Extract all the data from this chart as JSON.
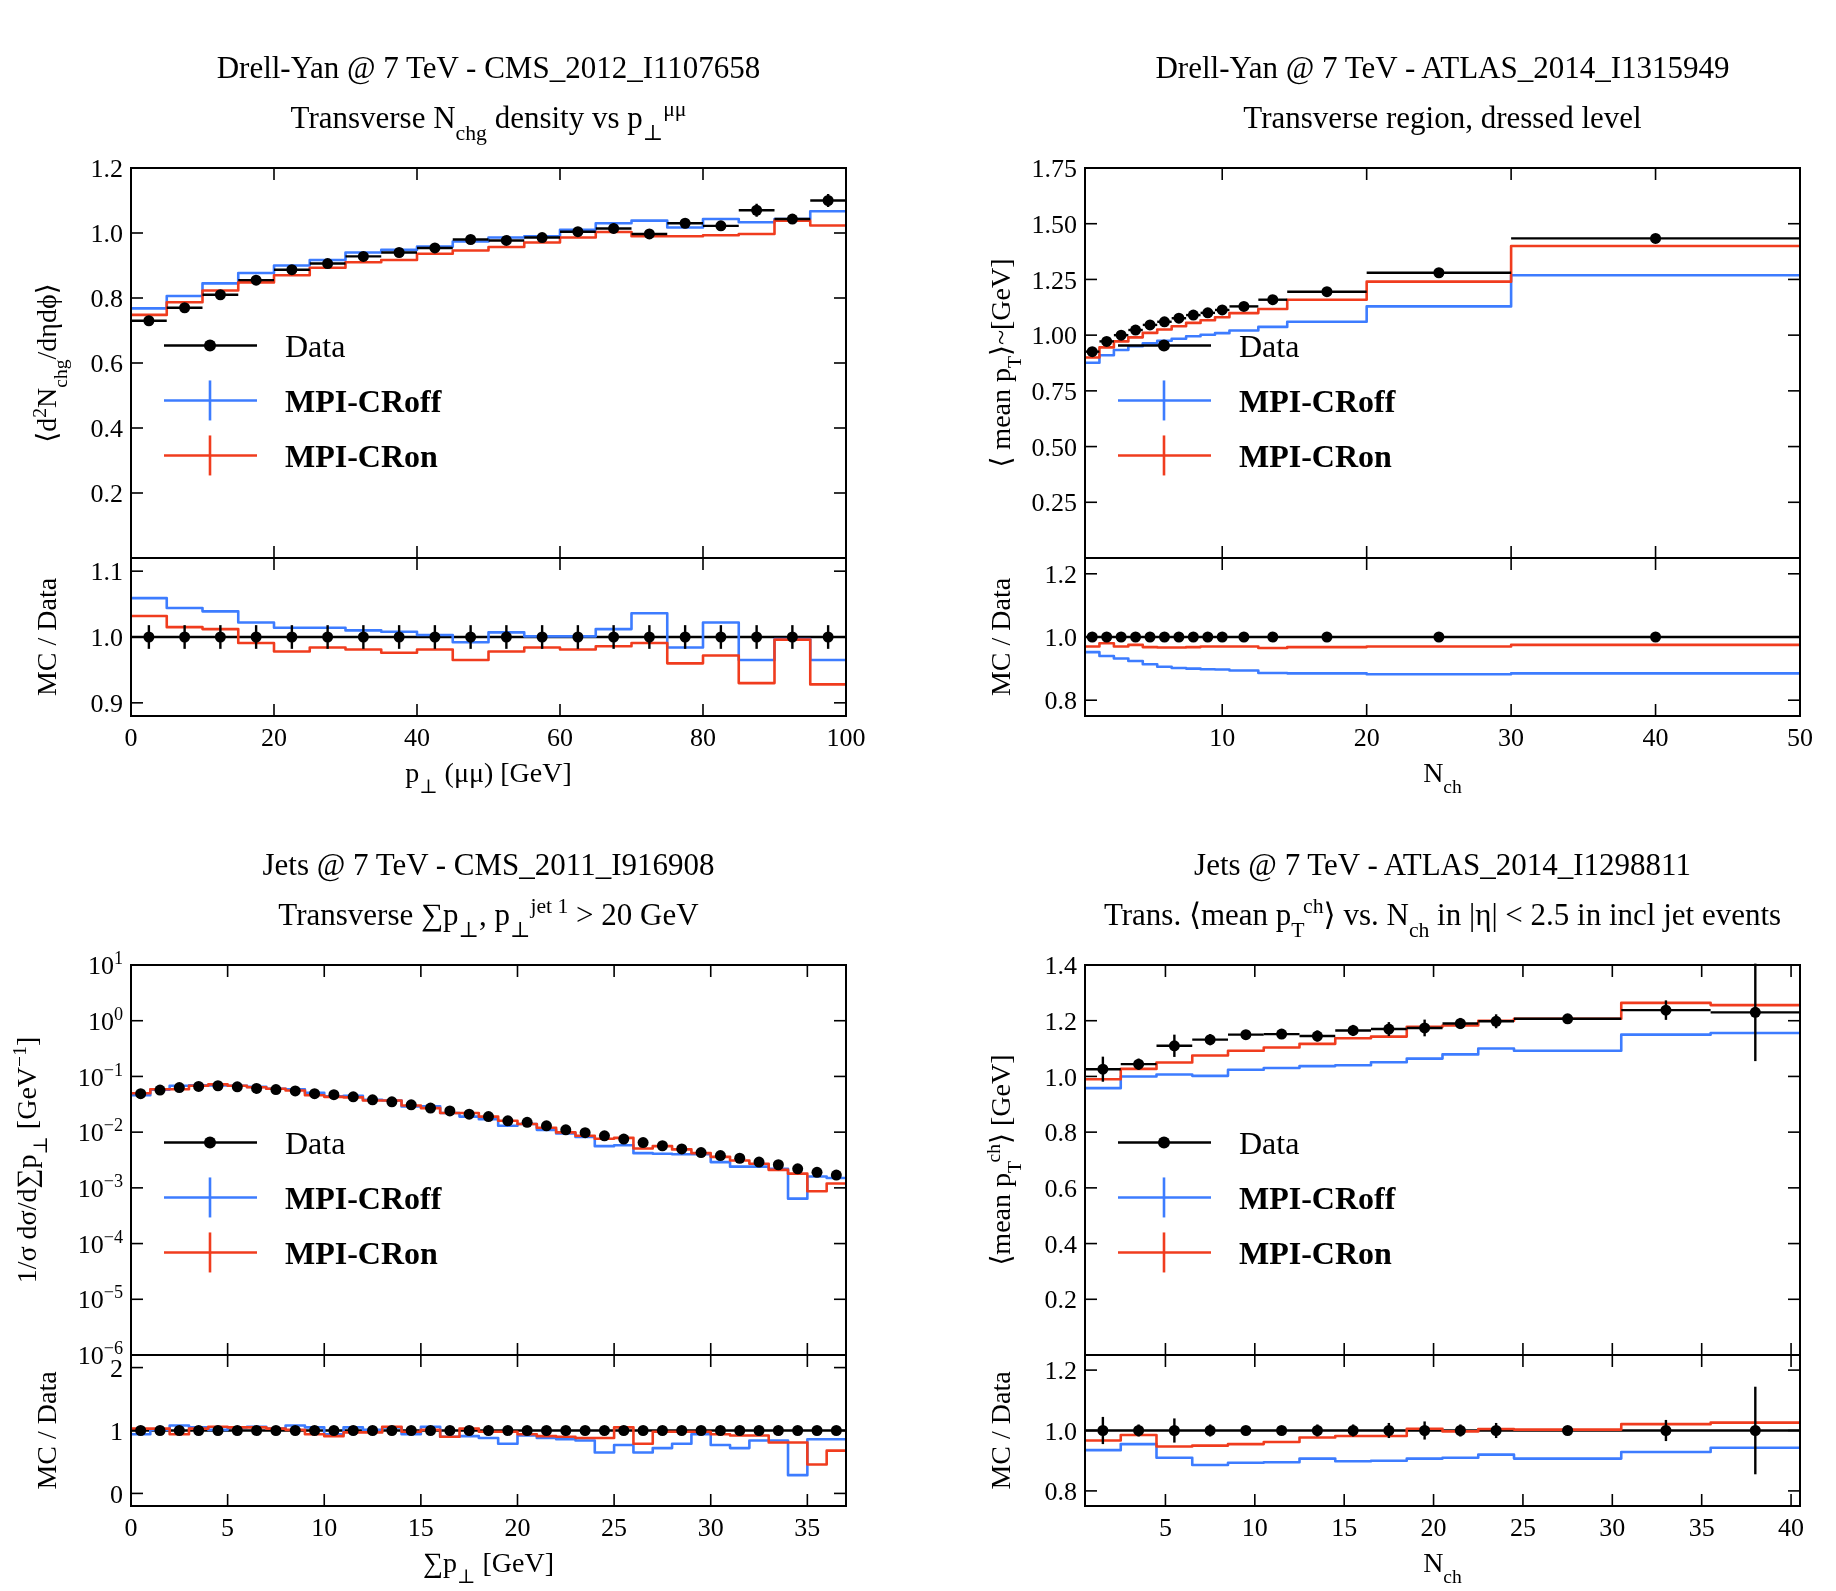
{
  "chart_data": [
    {
      "type": "histogram",
      "title": "Drell-Yan @ 7 TeV - CMS_2012_I1107658",
      "subtitle": "Transverse N$_{chg}$ density vs p$_{⊥}$$^{μμ}$",
      "ylabel": "⟨d$^{2}$N$_{chg}$/dηdϕ⟩",
      "xlim": [
        0,
        100
      ],
      "ylim": [
        0,
        1.2
      ],
      "xticks": [
        0,
        20,
        40,
        60,
        80,
        100
      ],
      "yticks": [
        0.2,
        0.4,
        0.6,
        0.8,
        {
          "value": 1,
          "label": "1.0"
        },
        1.2
      ],
      "tick_labels": "y",
      "legend": "left",
      "series": [
        {
          "name": "Data",
          "type": "scatter",
          "color": "#000000",
          "marker": "circle",
          "x": [
            2.5,
            7.5,
            12.5,
            17.5,
            22.5,
            27.5,
            32.5,
            37.5,
            42.5,
            47.5,
            52.5,
            57.5,
            62.5,
            67.5,
            72.5,
            77.5,
            82.5,
            87.5,
            92.5,
            97.5
          ],
          "values": [
            0.73,
            0.77,
            0.81,
            0.855,
            0.887,
            0.906,
            0.928,
            0.94,
            0.954,
            0.98,
            0.977,
            0.986,
            1.004,
            1.014,
            0.997,
            1.03,
            1.022,
            1.07,
            1.043,
            1.1
          ],
          "errors": [
            0.01,
            0.01,
            0.01,
            0.01,
            0.01,
            0.01,
            0.01,
            0.01,
            0.012,
            0.012,
            0.012,
            0.012,
            0.012,
            0.015,
            0.015,
            0.015,
            0.015,
            0.02,
            0.015,
            0.02
          ],
          "xerrors": [
            2.5,
            2.5,
            2.5,
            2.5,
            2.5,
            2.5,
            2.5,
            2.5,
            2.5,
            2.5,
            2.5,
            2.5,
            2.5,
            2.5,
            2.5,
            2.5,
            2.5,
            2.5,
            2.5,
            2.5
          ]
        },
        {
          "name": "MPI-CRoff",
          "type": "histogram",
          "color": "#3d7cff",
          "bins": [
            0,
            5,
            10,
            15,
            20,
            25,
            30,
            35,
            40,
            45,
            50,
            55,
            60,
            65,
            70,
            75,
            80,
            85,
            90,
            95,
            100
          ],
          "values": [
            0.768,
            0.806,
            0.845,
            0.877,
            0.9,
            0.917,
            0.94,
            0.948,
            0.958,
            0.974,
            0.986,
            0.99,
            1.01,
            1.03,
            1.038,
            1.017,
            1.043,
            1.033,
            1.043,
            1.067
          ]
        },
        {
          "name": "MPI-CRon",
          "type": "histogram",
          "color": "#f03c1e",
          "bins": [
            0,
            5,
            10,
            15,
            20,
            25,
            30,
            35,
            40,
            45,
            50,
            55,
            60,
            65,
            70,
            75,
            80,
            85,
            90,
            95,
            100
          ],
          "values": [
            0.748,
            0.787,
            0.823,
            0.848,
            0.87,
            0.893,
            0.91,
            0.917,
            0.936,
            0.946,
            0.957,
            0.971,
            0.986,
            1.003,
            0.99,
            0.99,
            0.993,
            0.997,
            1.038,
            1.023
          ]
        }
      ]
    },
    {
      "type": "histogram",
      "ylabel": "MC / Data",
      "xlabel": "p$_{⊥}$ (μμ) [GeV]",
      "xlim": [
        0,
        100
      ],
      "ylim": [
        0.88,
        1.12
      ],
      "xticks": [
        0,
        20,
        40,
        60,
        80,
        100
      ],
      "yticks": [
        0.9,
        {
          "value": 1,
          "label": "1.0"
        },
        1.1
      ],
      "ref_lines": [
        {
          "axis": "y",
          "value": 1,
          "color": "#000000"
        }
      ],
      "series": [
        {
          "type": "scatter",
          "color": "#000000",
          "marker": "circle",
          "x": [
            2.5,
            7.5,
            12.5,
            17.5,
            22.5,
            27.5,
            32.5,
            37.5,
            42.5,
            47.5,
            52.5,
            57.5,
            62.5,
            67.5,
            72.5,
            77.5,
            82.5,
            87.5,
            92.5,
            97.5
          ],
          "values": [
            1,
            1,
            1,
            1,
            1,
            1,
            1,
            1,
            1,
            1,
            1,
            1,
            1,
            1,
            1,
            1,
            1,
            1,
            1,
            1
          ],
          "errors": [
            0.018,
            0.018,
            0.018,
            0.018,
            0.018,
            0.018,
            0.018,
            0.018,
            0.018,
            0.018,
            0.018,
            0.018,
            0.018,
            0.018,
            0.018,
            0.018,
            0.018,
            0.018,
            0.018,
            0.018
          ]
        },
        {
          "type": "histogram",
          "color": "#3d7cff",
          "bins": [
            0,
            5,
            10,
            15,
            20,
            25,
            30,
            35,
            40,
            45,
            50,
            55,
            60,
            65,
            70,
            75,
            80,
            85,
            90,
            95,
            100
          ],
          "values": [
            1.059,
            1.044,
            1.039,
            1.022,
            1.014,
            1.014,
            1.01,
            1.008,
            1.003,
            0.992,
            1.007,
            1.001,
            1.001,
            1.012,
            1.036,
            0.984,
            1.022,
            0.965,
            0.997,
            0.965
          ]
        },
        {
          "type": "histogram",
          "color": "#f03c1e",
          "bins": [
            0,
            5,
            10,
            15,
            20,
            25,
            30,
            35,
            40,
            45,
            50,
            55,
            60,
            65,
            70,
            75,
            80,
            85,
            90,
            95,
            100
          ],
          "values": [
            1.032,
            1.015,
            1.012,
            0.991,
            0.978,
            0.984,
            0.981,
            0.976,
            0.981,
            0.965,
            0.978,
            0.984,
            0.981,
            0.986,
            0.991,
            0.96,
            0.972,
            0.93,
            0.996,
            0.928
          ]
        }
      ]
    },
    {
      "type": "histogram",
      "title": "Drell-Yan @ 7 TeV - ATLAS_2014_I1315949",
      "subtitle": "Transverse region, dressed level",
      "ylabel": "⟨ mean p$_{T}$⟩~[GeV]",
      "xlim": [
        0.5,
        50
      ],
      "ylim": [
        0,
        1.75
      ],
      "xticks": [
        10,
        20,
        30,
        40,
        50
      ],
      "yticks": [
        0.25,
        {
          "value": 0.5,
          "label": "0.50"
        },
        0.75,
        {
          "value": 1,
          "label": "1.00"
        },
        1.25,
        {
          "value": 1.5,
          "label": "1.50"
        },
        1.75
      ],
      "tick_labels": "y",
      "legend": "left",
      "series": [
        {
          "name": "Data",
          "type": "scatter",
          "color": "#000000",
          "marker": "circle",
          "x": [
            1,
            2,
            3,
            4,
            5,
            6,
            7,
            8,
            9,
            10,
            11.5,
            13.5,
            17.25,
            25,
            40
          ],
          "values": [
            0.926,
            0.972,
            1.0,
            1.023,
            1.046,
            1.06,
            1.076,
            1.09,
            1.1,
            1.113,
            1.129,
            1.159,
            1.195,
            1.28,
            1.434
          ],
          "errors": [
            0.01,
            0.01,
            0.01,
            0.01,
            0.01,
            0.01,
            0.01,
            0.01,
            0.01,
            0.01,
            0.01,
            0.01,
            0.01,
            0.01,
            0.015
          ],
          "xerrors": [
            0.5,
            0.5,
            0.5,
            0.5,
            0.5,
            0.5,
            0.5,
            0.5,
            0.5,
            0.5,
            1,
            1,
            2.75,
            5,
            10
          ]
        },
        {
          "name": "MPI-CRoff",
          "type": "histogram",
          "color": "#3d7cff",
          "bins": [
            0.5,
            1.5,
            2.5,
            3.5,
            4.5,
            5.5,
            6.5,
            7.5,
            8.5,
            9.5,
            10.5,
            12.5,
            14.5,
            20,
            30,
            50
          ],
          "values": [
            0.876,
            0.91,
            0.933,
            0.95,
            0.963,
            0.975,
            0.984,
            0.995,
            1.002,
            1.009,
            1.021,
            1.037,
            1.06,
            1.129,
            1.269
          ]
        },
        {
          "name": "MPI-CRon",
          "type": "histogram",
          "color": "#f03c1e",
          "bins": [
            0.5,
            1.5,
            2.5,
            3.5,
            4.5,
            5.5,
            6.5,
            7.5,
            8.5,
            9.5,
            10.5,
            12.5,
            14.5,
            20,
            30,
            50
          ],
          "values": [
            0.9,
            0.945,
            0.972,
            0.99,
            1.01,
            1.025,
            1.04,
            1.055,
            1.067,
            1.08,
            1.099,
            1.117,
            1.159,
            1.24,
            1.4
          ]
        }
      ]
    },
    {
      "type": "histogram",
      "ylabel": "MC / Data",
      "xlabel": "N$_{ch}$",
      "xlim": [
        0.5,
        50
      ],
      "ylim": [
        0.75,
        1.25
      ],
      "xticks": [
        10,
        20,
        30,
        40,
        50
      ],
      "yticks": [
        0.8,
        {
          "value": 1,
          "label": "1.0"
        },
        1.2
      ],
      "ref_lines": [
        {
          "axis": "y",
          "value": 1,
          "color": "#000000"
        }
      ],
      "series": [
        {
          "type": "scatter",
          "color": "#000000",
          "marker": "circle",
          "x": [
            1,
            2,
            3,
            4,
            5,
            6,
            7,
            8,
            9,
            10,
            11.5,
            13.5,
            17.25,
            25,
            40
          ],
          "values": [
            1,
            1,
            1,
            1,
            1,
            1,
            1,
            1,
            1,
            1,
            1,
            1,
            1,
            1,
            1
          ],
          "errors": [
            0.012,
            0.012,
            0.012,
            0.012,
            0.012,
            0.012,
            0.012,
            0.012,
            0.012,
            0.012,
            0.012,
            0.012,
            0.012,
            0.012,
            0.015
          ]
        },
        {
          "type": "histogram",
          "color": "#3d7cff",
          "bins": [
            0.5,
            1.5,
            2.5,
            3.5,
            4.5,
            5.5,
            6.5,
            7.5,
            8.5,
            9.5,
            10.5,
            12.5,
            14.5,
            20,
            30,
            50
          ],
          "values": [
            0.952,
            0.94,
            0.932,
            0.924,
            0.914,
            0.906,
            0.902,
            0.9,
            0.898,
            0.897,
            0.894,
            0.886,
            0.885,
            0.882,
            0.885
          ]
        },
        {
          "type": "histogram",
          "color": "#f03c1e",
          "bins": [
            0.5,
            1.5,
            2.5,
            3.5,
            4.5,
            5.5,
            6.5,
            7.5,
            8.5,
            9.5,
            10.5,
            12.5,
            14.5,
            20,
            30,
            50
          ],
          "values": [
            0.97,
            0.98,
            0.97,
            0.975,
            0.968,
            0.967,
            0.967,
            0.968,
            0.97,
            0.97,
            0.97,
            0.965,
            0.968,
            0.97,
            0.975
          ]
        }
      ]
    },
    {
      "type": "histogram",
      "title": "Jets @ 7 TeV - CMS_2011_I916908",
      "subtitle": "Transverse ∑p$_{⊥}$, p$_{⊥}$$^{jet 1}$ > 20 GeV",
      "ylabel": "1/σ dσ/d∑p$_{⊥}$ [GeV$^{−1}$]",
      "log": "y",
      "xlim": [
        0,
        37
      ],
      "ylim": [
        1e-06,
        10
      ],
      "xticks": [
        0,
        5,
        10,
        15,
        20,
        25,
        30,
        35
      ],
      "yticks": [
        {
          "value": 10,
          "label": "10$^{1}$"
        },
        {
          "value": 1,
          "label": "10$^{0}$"
        },
        {
          "value": 0.1,
          "label": "10$^{−1}$"
        },
        {
          "value": 0.01,
          "label": "10$^{−2}$"
        },
        {
          "value": 0.001,
          "label": "10$^{−3}$"
        },
        {
          "value": 0.0001,
          "label": "10$^{−4}$"
        },
        {
          "value": 1e-05,
          "label": "10$^{−5}$"
        },
        {
          "value": 1e-06,
          "label": "10$^{−6}$"
        }
      ],
      "tick_labels": "y",
      "legend": "left",
      "series": [
        {
          "name": "Data",
          "type": "scatter",
          "color": "#000000",
          "marker": "circle",
          "x": [
            0.5,
            1.5,
            2.5,
            3.5,
            4.5,
            5.5,
            6.5,
            7.5,
            8.5,
            9.5,
            10.5,
            11.5,
            12.5,
            13.5,
            14.5,
            15.5,
            16.5,
            17.5,
            18.5,
            19.5,
            20.5,
            21.5,
            22.5,
            23.5,
            24.5,
            25.5,
            26.5,
            27.5,
            28.5,
            29.5,
            30.5,
            31.5,
            32.5,
            33.5,
            34.5,
            35.5,
            36.5
          ],
          "values": [
            0.049,
            0.057,
            0.063,
            0.066,
            0.068,
            0.065,
            0.061,
            0.058,
            0.055,
            0.049,
            0.047,
            0.043,
            0.038,
            0.035,
            0.031,
            0.027,
            0.024,
            0.021,
            0.019,
            0.016,
            0.015,
            0.013,
            0.011,
            0.0098,
            0.0086,
            0.0075,
            0.0065,
            0.0057,
            0.005,
            0.0043,
            0.0038,
            0.0034,
            0.0029,
            0.0026,
            0.0022,
            0.0019,
            0.0017
          ]
        },
        {
          "name": "MPI-CRoff",
          "type": "histogram",
          "color": "#3d7cff",
          "bins": [
            0,
            1,
            2,
            3,
            4,
            5,
            6,
            7,
            8,
            9,
            10,
            11,
            12,
            13,
            14,
            15,
            16,
            17,
            18,
            19,
            20,
            21,
            22,
            23,
            24,
            25,
            26,
            27,
            28,
            29,
            30,
            31,
            32,
            33,
            34,
            35,
            36,
            37
          ],
          "values": [
            0.046,
            0.058,
            0.068,
            0.069,
            0.069,
            0.068,
            0.065,
            0.06,
            0.059,
            0.051,
            0.044,
            0.045,
            0.038,
            0.037,
            0.029,
            0.029,
            0.022,
            0.019,
            0.017,
            0.013,
            0.014,
            0.011,
            0.0095,
            0.0082,
            0.0056,
            0.0058,
            0.0042,
            0.0041,
            0.004,
            0.004,
            0.0029,
            0.0024,
            0.0024,
            0.0022,
            0.00064,
            0.0016,
            0.0015
          ]
        },
        {
          "name": "MPI-CRon",
          "type": "histogram",
          "color": "#f03c1e",
          "bins": [
            0,
            1,
            2,
            3,
            4,
            5,
            6,
            7,
            8,
            9,
            10,
            11,
            12,
            13,
            14,
            15,
            16,
            17,
            18,
            19,
            20,
            21,
            22,
            23,
            24,
            25,
            26,
            27,
            28,
            29,
            30,
            31,
            32,
            33,
            34,
            35,
            36,
            37
          ],
          "values": [
            0.05,
            0.059,
            0.059,
            0.068,
            0.072,
            0.068,
            0.064,
            0.06,
            0.056,
            0.046,
            0.043,
            0.042,
            0.037,
            0.037,
            0.03,
            0.027,
            0.022,
            0.022,
            0.019,
            0.016,
            0.014,
            0.012,
            0.0099,
            0.0086,
            0.0076,
            0.0079,
            0.0051,
            0.0056,
            0.0049,
            0.0042,
            0.0036,
            0.0031,
            0.0027,
            0.0021,
            0.0018,
            0.00087,
            0.0012
          ]
        }
      ]
    },
    {
      "type": "histogram",
      "ylabel": "MC / Data",
      "xlabel": "∑p$_{⊥}$ [GeV]",
      "xlim": [
        0,
        37
      ],
      "ylim": [
        -0.2,
        2.2
      ],
      "xticks": [
        0,
        5,
        10,
        15,
        20,
        25,
        30,
        35
      ],
      "yticks": [
        0,
        1,
        2
      ],
      "ref_lines": [
        {
          "axis": "y",
          "value": 1,
          "color": "#000000"
        }
      ],
      "series": [
        {
          "type": "scatter",
          "color": "#000000",
          "marker": "circle",
          "x": [
            0.5,
            1.5,
            2.5,
            3.5,
            4.5,
            5.5,
            6.5,
            7.5,
            8.5,
            9.5,
            10.5,
            11.5,
            12.5,
            13.5,
            14.5,
            15.5,
            16.5,
            17.5,
            18.5,
            19.5,
            20.5,
            21.5,
            22.5,
            23.5,
            24.5,
            25.5,
            26.5,
            27.5,
            28.5,
            29.5,
            30.5,
            31.5,
            32.5,
            33.5,
            34.5,
            35.5,
            36.5
          ],
          "values": [
            1,
            1,
            1,
            1,
            1,
            1,
            1,
            1,
            1,
            1,
            1,
            1,
            1,
            1,
            1,
            1,
            1,
            1,
            1,
            1,
            1,
            1,
            1,
            1,
            1,
            1,
            1,
            1,
            1,
            1,
            1,
            1,
            1,
            1,
            1,
            1,
            1
          ]
        },
        {
          "type": "histogram",
          "color": "#3d7cff",
          "bins": [
            0,
            1,
            2,
            3,
            4,
            5,
            6,
            7,
            8,
            9,
            10,
            11,
            12,
            13,
            14,
            15,
            16,
            17,
            18,
            19,
            20,
            21,
            22,
            23,
            24,
            25,
            26,
            27,
            28,
            29,
            30,
            31,
            32,
            33,
            34,
            35,
            36,
            37
          ],
          "values": [
            0.94,
            1.01,
            1.08,
            1.05,
            1.01,
            1.05,
            1.06,
            1.03,
            1.08,
            1.05,
            0.94,
            1.05,
            1.01,
            1.05,
            0.94,
            1.06,
            0.9,
            0.91,
            0.88,
            0.79,
            0.92,
            0.88,
            0.86,
            0.84,
            0.65,
            0.77,
            0.65,
            0.72,
            0.79,
            0.94,
            0.77,
            0.72,
            0.84,
            0.84,
            0.29,
            0.86,
            0.86
          ]
        },
        {
          "type": "histogram",
          "color": "#f03c1e",
          "bins": [
            0,
            1,
            2,
            3,
            4,
            5,
            6,
            7,
            8,
            9,
            10,
            11,
            12,
            13,
            14,
            15,
            16,
            17,
            18,
            19,
            20,
            21,
            22,
            23,
            24,
            25,
            26,
            27,
            28,
            29,
            30,
            31,
            32,
            33,
            34,
            35,
            36,
            37
          ],
          "values": [
            1.03,
            1.03,
            0.94,
            1.03,
            1.06,
            1.05,
            1.05,
            1.03,
            1.01,
            0.94,
            0.91,
            0.97,
            0.97,
            1.06,
            0.98,
            1.01,
            0.9,
            1.03,
            0.98,
            0.98,
            0.94,
            0.91,
            0.9,
            0.88,
            0.88,
            1.05,
            0.79,
            0.98,
            0.98,
            0.98,
            0.94,
            0.92,
            0.92,
            0.81,
            0.81,
            0.46,
            0.68
          ]
        }
      ]
    },
    {
      "type": "histogram",
      "title": "Jets @ 7 TeV - ATLAS_2014_I1298811",
      "subtitle": "Trans. ⟨mean p$_{T}$$^{ch}$⟩ vs. N$_{ch}$ in |η| < 2.5 in incl jet events",
      "ylabel": "⟨mean p$_{T}$$^{ch}$⟩ [GeV]",
      "xlim": [
        0.5,
        40.5
      ],
      "ylim": [
        0,
        1.4
      ],
      "xticks": [
        5,
        10,
        15,
        20,
        25,
        30,
        35,
        40
      ],
      "yticks": [
        0.2,
        0.4,
        0.6,
        0.8,
        {
          "value": 1,
          "label": "1.0"
        },
        1.2,
        1.4
      ],
      "tick_labels": "y",
      "legend": "left",
      "series": [
        {
          "name": "Data",
          "type": "scatter",
          "color": "#000000",
          "marker": "circle",
          "x": [
            1.5,
            3.5,
            5.5,
            7.5,
            9.5,
            11.5,
            13.5,
            15.5,
            17.5,
            19.5,
            21.5,
            23.5,
            27.5,
            33,
            38
          ],
          "values": [
            1.026,
            1.044,
            1.11,
            1.132,
            1.15,
            1.152,
            1.145,
            1.165,
            1.17,
            1.174,
            1.19,
            1.198,
            1.207,
            1.238,
            1.23
          ],
          "errors": [
            0.045,
            0.02,
            0.04,
            0.02,
            0.01,
            0.015,
            0.02,
            0.02,
            0.025,
            0.03,
            0.02,
            0.025,
            0.015,
            0.035,
            0.175
          ],
          "xerrors": [
            1,
            1,
            1,
            1,
            1,
            1,
            1,
            1,
            1,
            1,
            1,
            1,
            3,
            2.5,
            2.5
          ]
        },
        {
          "name": "MPI-CRoff",
          "type": "histogram",
          "color": "#3d7cff",
          "bins": [
            0.5,
            2.5,
            4.5,
            6.5,
            8.5,
            10.5,
            12.5,
            14.5,
            16.5,
            18.5,
            20.5,
            22.5,
            24.5,
            30.5,
            35.5,
            40.5
          ],
          "values": [
            0.958,
            1.0,
            1.007,
            1.002,
            1.024,
            1.03,
            1.037,
            1.04,
            1.051,
            1.064,
            1.079,
            1.1,
            1.092,
            1.15,
            1.156
          ]
        },
        {
          "name": "MPI-CRon",
          "type": "histogram",
          "color": "#f03c1e",
          "bins": [
            0.5,
            2.5,
            4.5,
            6.5,
            8.5,
            10.5,
            12.5,
            14.5,
            16.5,
            18.5,
            20.5,
            22.5,
            24.5,
            30.5,
            35.5,
            40.5
          ],
          "values": [
            0.99,
            1.027,
            1.05,
            1.075,
            1.092,
            1.104,
            1.117,
            1.137,
            1.143,
            1.178,
            1.183,
            1.2,
            1.207,
            1.264,
            1.256
          ]
        }
      ]
    },
    {
      "type": "histogram",
      "ylabel": "MC / Data",
      "xlabel": "N$_{ch}$",
      "xlim": [
        0.5,
        40.5
      ],
      "ylim": [
        0.75,
        1.25
      ],
      "xticks": [
        5,
        10,
        15,
        20,
        25,
        30,
        35,
        40
      ],
      "yticks": [
        0.8,
        {
          "value": 1,
          "label": "1.0"
        },
        1.2
      ],
      "ref_lines": [
        {
          "axis": "y",
          "value": 1,
          "color": "#000000"
        }
      ],
      "series": [
        {
          "type": "scatter",
          "color": "#000000",
          "marker": "circle",
          "x": [
            1.5,
            3.5,
            5.5,
            7.5,
            9.5,
            11.5,
            13.5,
            15.5,
            17.5,
            19.5,
            21.5,
            23.5,
            27.5,
            33,
            38
          ],
          "values": [
            1,
            1,
            1,
            1,
            1,
            1,
            1,
            1,
            1,
            1,
            1,
            1,
            1,
            1,
            1
          ],
          "errors": [
            0.045,
            0.02,
            0.04,
            0.02,
            0.01,
            0.015,
            0.02,
            0.02,
            0.025,
            0.03,
            0.02,
            0.025,
            0.015,
            0.035,
            0.145
          ]
        },
        {
          "type": "histogram",
          "color": "#3d7cff",
          "bins": [
            0.5,
            2.5,
            4.5,
            6.5,
            8.5,
            10.5,
            12.5,
            14.5,
            16.5,
            18.5,
            20.5,
            22.5,
            24.5,
            30.5,
            35.5,
            40.5
          ],
          "values": [
            0.935,
            0.955,
            0.91,
            0.886,
            0.893,
            0.895,
            0.907,
            0.898,
            0.9,
            0.907,
            0.91,
            0.92,
            0.907,
            0.929,
            0.943
          ]
        },
        {
          "type": "histogram",
          "color": "#f03c1e",
          "bins": [
            0.5,
            2.5,
            4.5,
            6.5,
            8.5,
            10.5,
            12.5,
            14.5,
            16.5,
            18.5,
            20.5,
            22.5,
            24.5,
            30.5,
            35.5,
            40.5
          ],
          "values": [
            0.967,
            0.985,
            0.947,
            0.95,
            0.955,
            0.962,
            0.977,
            0.982,
            0.982,
            1.006,
            0.997,
            1.005,
            1.003,
            1.021,
            1.026
          ]
        }
      ]
    }
  ]
}
